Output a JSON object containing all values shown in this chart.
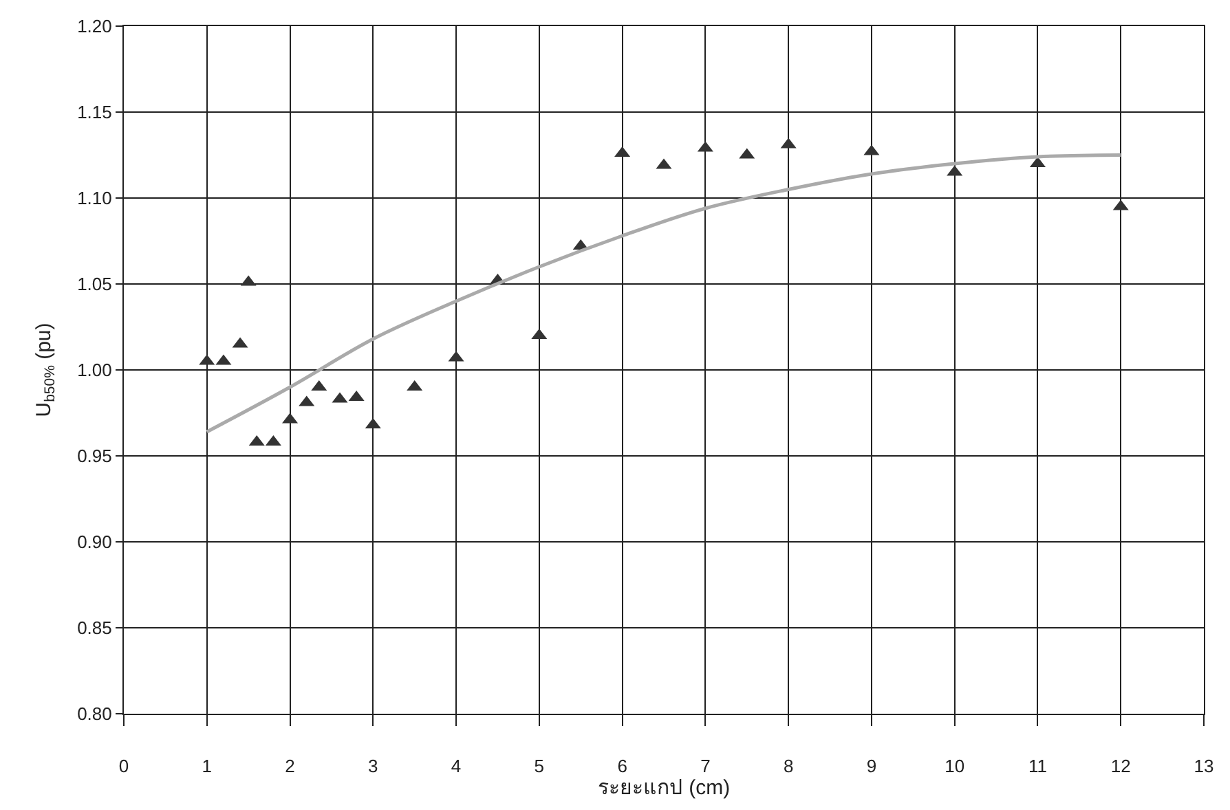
{
  "chart_data": {
    "type": "scatter",
    "xlabel": "ระยะแกป (cm)",
    "ylabel": "U$_{b50%}$ (pu)",
    "xlim": [
      0,
      13
    ],
    "xticks": [
      0,
      1,
      2,
      3,
      4,
      5,
      6,
      7,
      8,
      9,
      10,
      11,
      12,
      13
    ],
    "ylim": [
      0.8,
      1.2
    ],
    "yticks": [
      {
        "value": 0.8,
        "label": "0.80"
      },
      {
        "value": 0.85,
        "label": "0.85"
      },
      {
        "value": 0.9,
        "label": "0.90"
      },
      {
        "value": 0.95,
        "label": "0.95"
      },
      {
        "value": 1.0,
        "label": "1.00"
      },
      {
        "value": 1.05,
        "label": "1.05"
      },
      {
        "value": 1.1,
        "label": "1.10"
      },
      {
        "value": 1.15,
        "label": "1.15"
      },
      {
        "value": 1.2,
        "label": "1.20"
      }
    ],
    "grid": true,
    "series": [
      {
        "marker": "triangle",
        "color": "#333333",
        "x": [
          1.0,
          1.2,
          1.4,
          1.5,
          1.6,
          1.8,
          2.0,
          2.2,
          2.35,
          2.6,
          2.8,
          3.0,
          3.5,
          4.0,
          4.5,
          5.0,
          5.5,
          6.0,
          6.5,
          7.0,
          7.5,
          8.0,
          9.0,
          10.0,
          11.0,
          12.0
        ],
        "values": [
          1.005,
          1.005,
          1.015,
          1.051,
          0.958,
          0.958,
          0.971,
          0.981,
          0.99,
          0.983,
          0.984,
          0.968,
          0.99,
          1.007,
          1.052,
          1.02,
          1.072,
          1.126,
          1.119,
          1.129,
          1.125,
          1.131,
          1.127,
          1.115,
          1.12,
          1.095
        ]
      },
      {
        "type": "line",
        "marker": "none",
        "color": "#aaaaaa",
        "x": [
          1,
          2,
          3,
          4,
          5,
          6,
          7,
          8,
          9,
          10,
          11,
          12
        ],
        "values": [
          0.964,
          0.99,
          1.018,
          1.04,
          1.06,
          1.078,
          1.094,
          1.105,
          1.114,
          1.12,
          1.124,
          1.125
        ]
      }
    ]
  }
}
